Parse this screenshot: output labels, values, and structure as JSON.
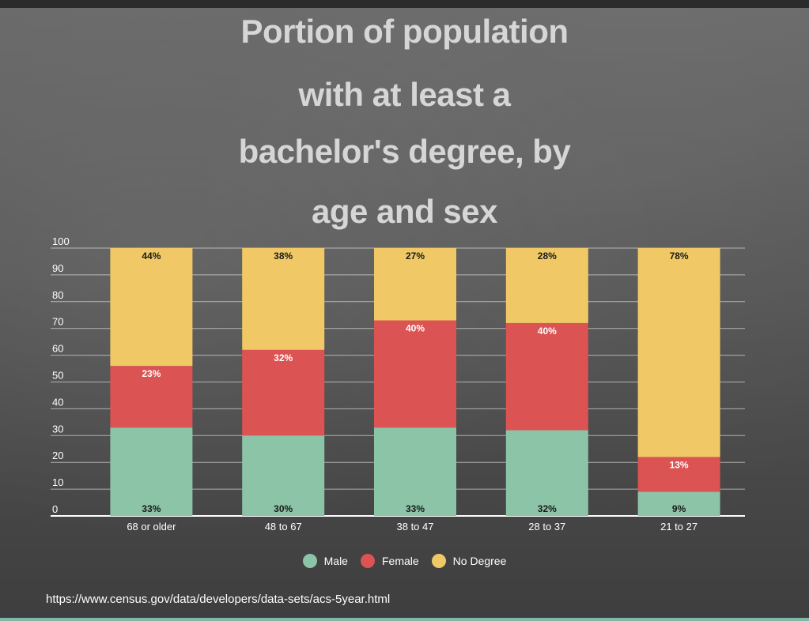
{
  "title_lines": [
    "Portion of population",
    "with at least a",
    "bachelor's degree, by",
    "age and sex"
  ],
  "source": "https://www.census.gov/data/developers/data-sets/acs-5year.html",
  "colors": {
    "male": "#8cc4a8",
    "female": "#db5352",
    "no_degree": "#f0c966"
  },
  "chart_data": {
    "type": "bar",
    "stacked": true,
    "title": "Portion of population with at least a bachelor's degree, by age and sex",
    "categories": [
      "68 or older",
      "48 to 67",
      "38 to 47",
      "28 to 37",
      "21 to 27"
    ],
    "series": [
      {
        "name": "Male",
        "values": [
          33,
          30,
          33,
          32,
          9
        ],
        "labels": [
          "33%",
          "30%",
          "33%",
          "32%",
          "9%"
        ]
      },
      {
        "name": "Female",
        "values": [
          23,
          32,
          40,
          40,
          13
        ],
        "labels": [
          "23%",
          "32%",
          "40%",
          "40%",
          "13%"
        ]
      },
      {
        "name": "No Degree",
        "values": [
          44,
          38,
          27,
          28,
          78
        ],
        "labels": [
          "44%",
          "38%",
          "27%",
          "28%",
          "78%"
        ]
      }
    ],
    "ylim": [
      0,
      100
    ],
    "yticks": [
      0,
      10,
      20,
      30,
      40,
      50,
      60,
      70,
      80,
      90,
      100
    ],
    "grid": true,
    "legend_position": "bottom"
  }
}
